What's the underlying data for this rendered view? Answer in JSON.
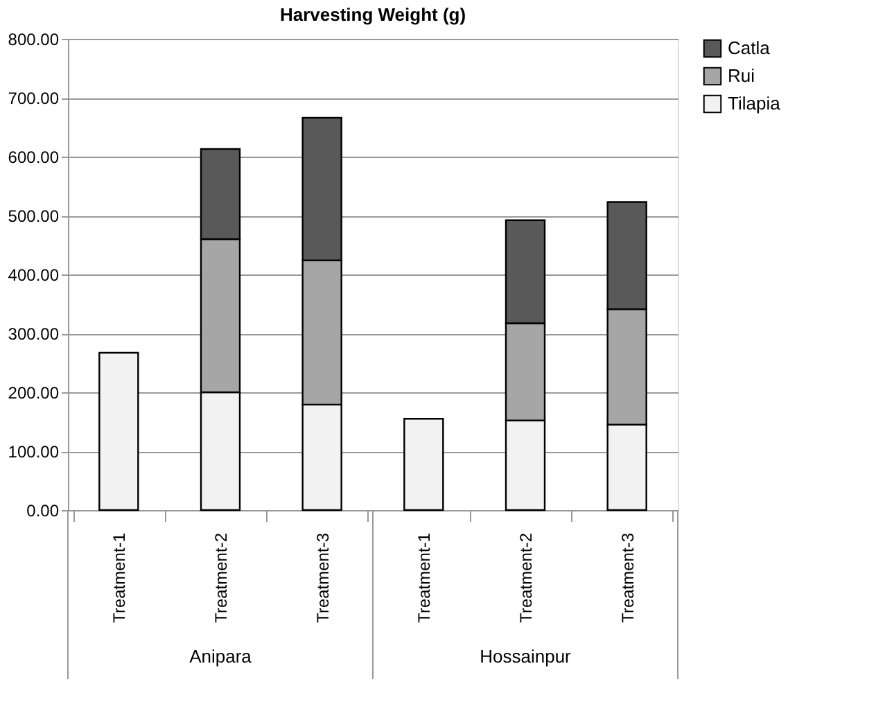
{
  "chart_data": {
    "type": "bar",
    "title": "Harvesting Weight (g)",
    "stacked": true,
    "categories": [
      "Treatment-1",
      "Treatment-2",
      "Treatment-3",
      "Treatment-1",
      "Treatment-2",
      "Treatment-3"
    ],
    "annotations": [
      "Anipara",
      "Hossainpur"
    ],
    "series": [
      {
        "name": "Tilapia",
        "color": "#f2f2f2",
        "values": [
          267,
          200,
          179,
          155,
          152,
          145
        ]
      },
      {
        "name": "Rui",
        "color": "#a6a6a6",
        "values": [
          null,
          260,
          245,
          null,
          165,
          196
        ]
      },
      {
        "name": "Catla",
        "color": "#595959",
        "values": [
          null,
          153,
          242,
          null,
          175,
          182
        ]
      }
    ],
    "ylim": [
      0,
      800
    ],
    "yticks": [
      {
        "value": 0,
        "label": "0.00"
      },
      {
        "value": 100,
        "label": "100.00"
      },
      {
        "value": 200,
        "label": "200.00"
      },
      {
        "value": 300,
        "label": "300.00"
      },
      {
        "value": 400,
        "label": "400.00"
      },
      {
        "value": 500,
        "label": "500.00"
      },
      {
        "value": 600,
        "label": "600.00"
      },
      {
        "value": 700,
        "label": "700.00"
      },
      {
        "value": 800,
        "label": "800.00"
      }
    ],
    "grid": "y",
    "legend": "right"
  }
}
